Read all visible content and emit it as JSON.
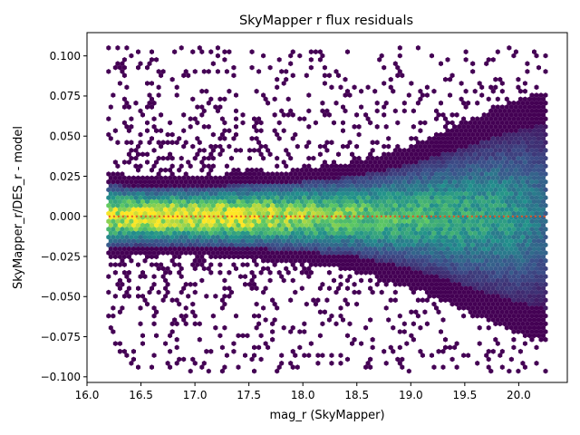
{
  "chart_data": {
    "type": "hexbin",
    "title": "SkyMapper r flux residuals",
    "xlabel": "mag_r (SkyMapper)",
    "ylabel": "SkyMapper_r/DES_r - model",
    "xlim": [
      16.0,
      20.45
    ],
    "ylim": [
      -0.1035,
      0.1145
    ],
    "x_ticks": [
      16.0,
      16.5,
      17.0,
      17.5,
      18.0,
      18.5,
      19.0,
      19.5,
      20.0
    ],
    "x_tick_labels": [
      "16.0",
      "16.5",
      "17.0",
      "17.5",
      "18.0",
      "18.5",
      "19.0",
      "19.5",
      "20.0"
    ],
    "y_ticks": [
      -0.1,
      -0.075,
      -0.05,
      -0.025,
      0.0,
      0.025,
      0.05,
      0.075,
      0.1
    ],
    "y_tick_labels": [
      "−0.100",
      "−0.075",
      "−0.050",
      "−0.025",
      "0.000",
      "0.025",
      "0.050",
      "0.075",
      "0.100"
    ],
    "data_x_range": [
      16.2,
      20.25
    ],
    "data_y_range": [
      -0.093,
      0.105
    ],
    "density_profile": {
      "x": [
        16.2,
        16.5,
        17.0,
        17.5,
        18.0,
        18.5,
        19.0,
        19.5,
        20.0,
        20.25
      ],
      "core_sigma": [
        0.011,
        0.01,
        0.01,
        0.011,
        0.012,
        0.014,
        0.018,
        0.024,
        0.03,
        0.032
      ],
      "relative_density": [
        0.9,
        1.0,
        1.0,
        0.95,
        0.85,
        0.75,
        0.65,
        0.6,
        0.5,
        0.35
      ]
    },
    "colormap": "viridis",
    "colormap_stops": [
      "#440154",
      "#3b528b",
      "#21918c",
      "#5ec962",
      "#fde725"
    ],
    "reference_line": {
      "y": 0.0,
      "x_range": [
        16.2,
        20.25
      ],
      "style": "dotted",
      "color": "#e8501e"
    },
    "grid": false,
    "legend": "none"
  }
}
